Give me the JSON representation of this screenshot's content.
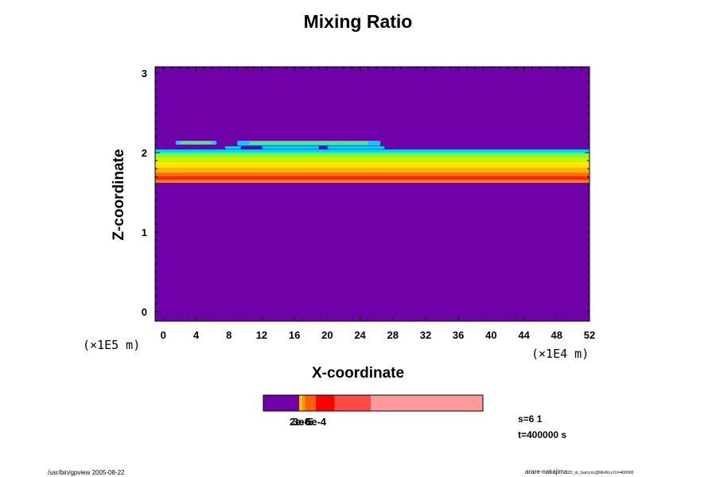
{
  "chart_data": {
    "type": "heatmap",
    "title": "Mixing Ratio",
    "xlabel": "X-coordinate",
    "ylabel": "Z-coordinate",
    "x_unit": "(×1E4 m)",
    "y_unit": "(×1E5 m)",
    "xlim": [
      -1,
      52
    ],
    "ylim": [
      -0.12,
      3.08
    ],
    "x_ticks": [
      "0",
      "4",
      "8",
      "12",
      "16",
      "20",
      "24",
      "28",
      "32",
      "36",
      "40",
      "44",
      "48",
      "52"
    ],
    "y_ticks": [
      "0",
      "1",
      "2",
      "3"
    ],
    "background_color": "#7000a8",
    "layer": {
      "bottom_z": 1.61,
      "top_z": 2.03,
      "x_extent": [
        -1,
        52
      ]
    },
    "bands": [
      {
        "color": "#00d0ff",
        "z0": 2.0,
        "z1": 2.04
      },
      {
        "color": "#20f0a0",
        "z0": 1.98,
        "z1": 2.01
      },
      {
        "color": "#80ff20",
        "z0": 1.93,
        "z1": 1.99
      },
      {
        "color": "#c8f000",
        "z0": 1.87,
        "z1": 1.94
      },
      {
        "color": "#ffe800",
        "z0": 1.8,
        "z1": 1.88
      },
      {
        "color": "#ffb000",
        "z0": 1.74,
        "z1": 1.81
      },
      {
        "color": "#ff7000",
        "z0": 1.69,
        "z1": 1.75
      },
      {
        "color": "#ff2000",
        "z0": 1.66,
        "z1": 1.7
      },
      {
        "color": "#ff8000",
        "z0": 1.62,
        "z1": 1.66
      }
    ],
    "patches": [
      {
        "color": "#00d0ff",
        "x0": 1.5,
        "x1": 6.5,
        "z0": 2.1,
        "z1": 2.15
      },
      {
        "color": "#40f080",
        "x0": 2.0,
        "x1": 6.0,
        "z0": 2.11,
        "z1": 2.14
      },
      {
        "color": "#00d0ff",
        "x0": 9.0,
        "x1": 26.5,
        "z0": 2.09,
        "z1": 2.15
      },
      {
        "color": "#40f080",
        "x0": 10.5,
        "x1": 25.0,
        "z0": 2.1,
        "z1": 2.14
      },
      {
        "color": "#00d0ff",
        "x0": 7.5,
        "x1": 9.5,
        "z0": 2.05,
        "z1": 2.08
      },
      {
        "color": "#00d0ff",
        "x0": 12.0,
        "x1": 19.0,
        "z0": 2.05,
        "z1": 2.08
      },
      {
        "color": "#00d0ff",
        "x0": 20.0,
        "x1": 27.0,
        "z0": 2.05,
        "z1": 2.08
      }
    ],
    "colorbar": {
      "colors": [
        "#7000a8",
        "#ffb000",
        "#ffd000",
        "#ff9000",
        "#ff6000",
        "#ff0000",
        "#ff4848",
        "#ff9a9a"
      ],
      "fractions": [
        0.163,
        0.007,
        0.007,
        0.013,
        0.048,
        0.087,
        0.165,
        0.51
      ],
      "labels": [
        "2e-6",
        "3e-5",
        "5e-4"
      ]
    },
    "info": {
      "step": "s=6 1",
      "time": "t=400000 s"
    },
    "footer_left": "/usr/bin/gpview 2005-08-22",
    "footer_right": "arare-nakajima",
    "footer_right_small": "2D_st_Garry.nc@MixRt,x:0:t=400000"
  }
}
